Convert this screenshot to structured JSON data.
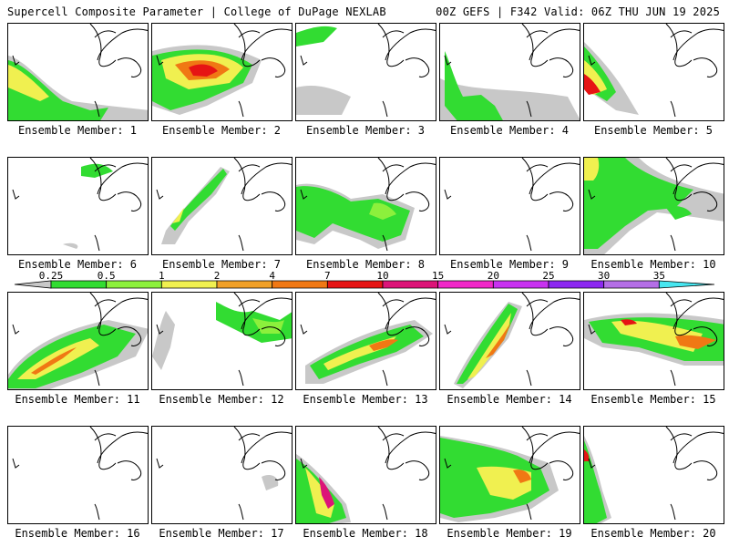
{
  "header": {
    "left": "Supercell Composite Parameter | College of DuPage NEXLAB",
    "right": "00Z GEFS | F342 Valid: 06Z THU JUN 19 2025"
  },
  "legend": {
    "levels": [
      "0.25",
      "0.5",
      "1",
      "2",
      "4",
      "7",
      "10",
      "15",
      "20",
      "25",
      "30",
      "35"
    ],
    "colors": [
      "#c8c8c8",
      "#32dc32",
      "#8cf03c",
      "#f0f050",
      "#f0a028",
      "#f07814",
      "#e61414",
      "#dc1478",
      "#f028c8",
      "#c832f0",
      "#8c28f0",
      "#b46ee6",
      "#46e6f0"
    ]
  },
  "panels": [
    {
      "label": "Ensemble Member: 1"
    },
    {
      "label": "Ensemble Member: 2"
    },
    {
      "label": "Ensemble Member: 3"
    },
    {
      "label": "Ensemble Member: 4"
    },
    {
      "label": "Ensemble Member: 5"
    },
    {
      "label": "Ensemble Member: 6"
    },
    {
      "label": "Ensemble Member: 7"
    },
    {
      "label": "Ensemble Member: 8"
    },
    {
      "label": "Ensemble Member: 9"
    },
    {
      "label": "Ensemble Member: 10"
    },
    {
      "label": "Ensemble Member: 11"
    },
    {
      "label": "Ensemble Member: 12"
    },
    {
      "label": "Ensemble Member: 13"
    },
    {
      "label": "Ensemble Member: 14"
    },
    {
      "label": "Ensemble Member: 15"
    },
    {
      "label": "Ensemble Member: 16"
    },
    {
      "label": "Ensemble Member: 17"
    },
    {
      "label": "Ensemble Member: 18"
    },
    {
      "label": "Ensemble Member: 19"
    },
    {
      "label": "Ensemble Member: 20"
    }
  ]
}
